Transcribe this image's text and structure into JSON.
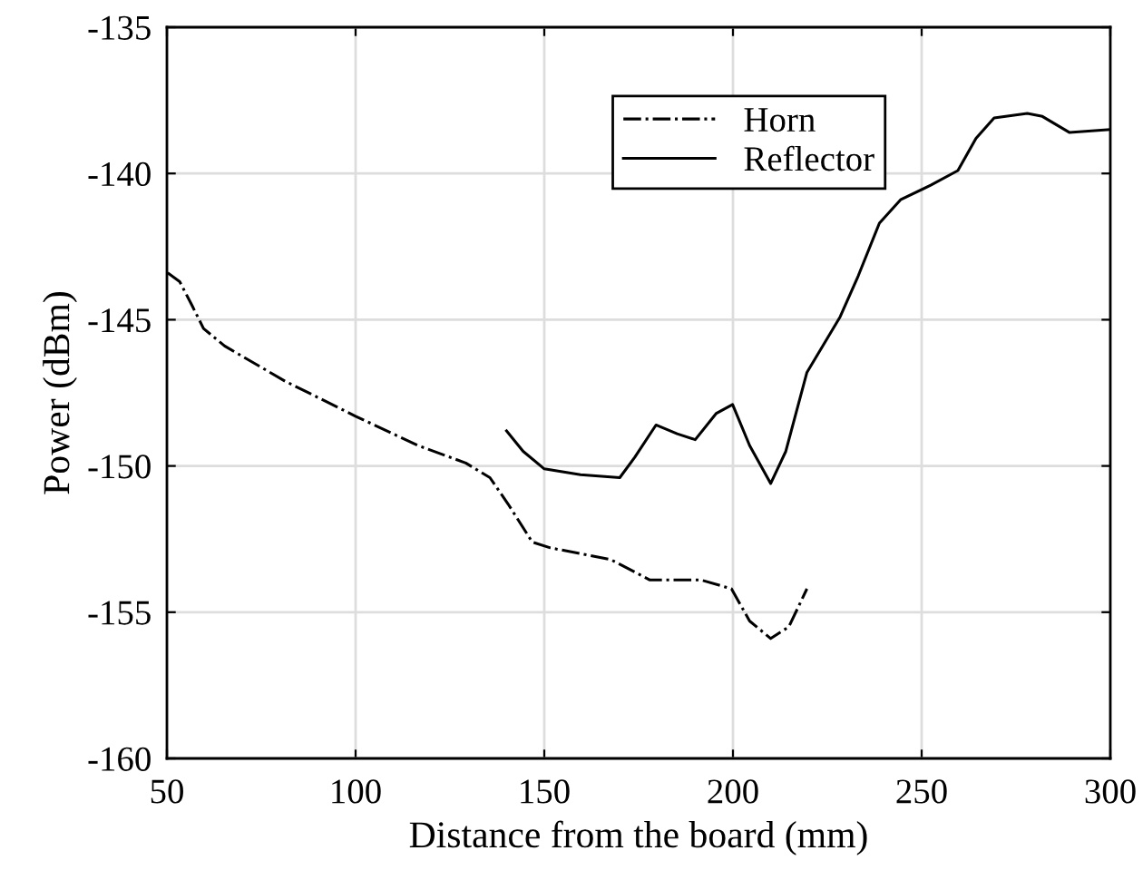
{
  "chart_data": {
    "type": "line",
    "xlabel": "Distance from the board (mm)",
    "ylabel": "Power (dBm)",
    "xlim": [
      50,
      300
    ],
    "xticks": [
      50,
      100,
      150,
      200,
      250,
      300
    ],
    "ylim": [
      -160,
      -135
    ],
    "yticks": [
      -160,
      -155,
      -150,
      -145,
      -140,
      -135
    ],
    "grid": true,
    "legend": "top right",
    "marker": "none",
    "series": [
      {
        "name": "Horn",
        "color": "#000000",
        "line_style": "dashdot",
        "x": [
          50.2,
          53.4,
          56.6,
          59.7,
          65.3,
          81.3,
          100,
          116.5,
          129.2,
          135.6,
          140.4,
          146.8,
          151.6,
          167.6,
          178,
          191.6,
          199.6,
          204.4,
          210,
          214.8,
          219.6
        ],
        "values": [
          -143.4,
          -143.7,
          -144.5,
          -145.3,
          -145.9,
          -147.1,
          -148.3,
          -149.3,
          -149.9,
          -150.4,
          -151.3,
          -152.6,
          -152.8,
          -153.2,
          -153.9,
          -153.9,
          -154.2,
          -155.3,
          -155.9,
          -155.5,
          -154.2
        ]
      },
      {
        "name": "Reflector",
        "color": "#000000",
        "line_style": "solid",
        "x": [
          140,
          144.4,
          150,
          159.6,
          170,
          174,
          179.6,
          185.2,
          190,
          195.6,
          199.9,
          204.4,
          210,
          214,
          219.6,
          228.4,
          233.2,
          238.8,
          244.4,
          252.4,
          259.6,
          264.4,
          269.2,
          278,
          282,
          289.2,
          300
        ],
        "values": [
          -148.8,
          -149.5,
          -150.1,
          -150.3,
          -150.4,
          -149.7,
          -148.6,
          -148.9,
          -149.1,
          -148.2,
          -147.9,
          -149.3,
          -150.6,
          -149.5,
          -146.8,
          -144.9,
          -143.5,
          -141.7,
          -140.9,
          -140.4,
          -139.9,
          -138.8,
          -138.1,
          -137.95,
          -138.05,
          -138.6,
          -138.5
        ]
      }
    ]
  }
}
